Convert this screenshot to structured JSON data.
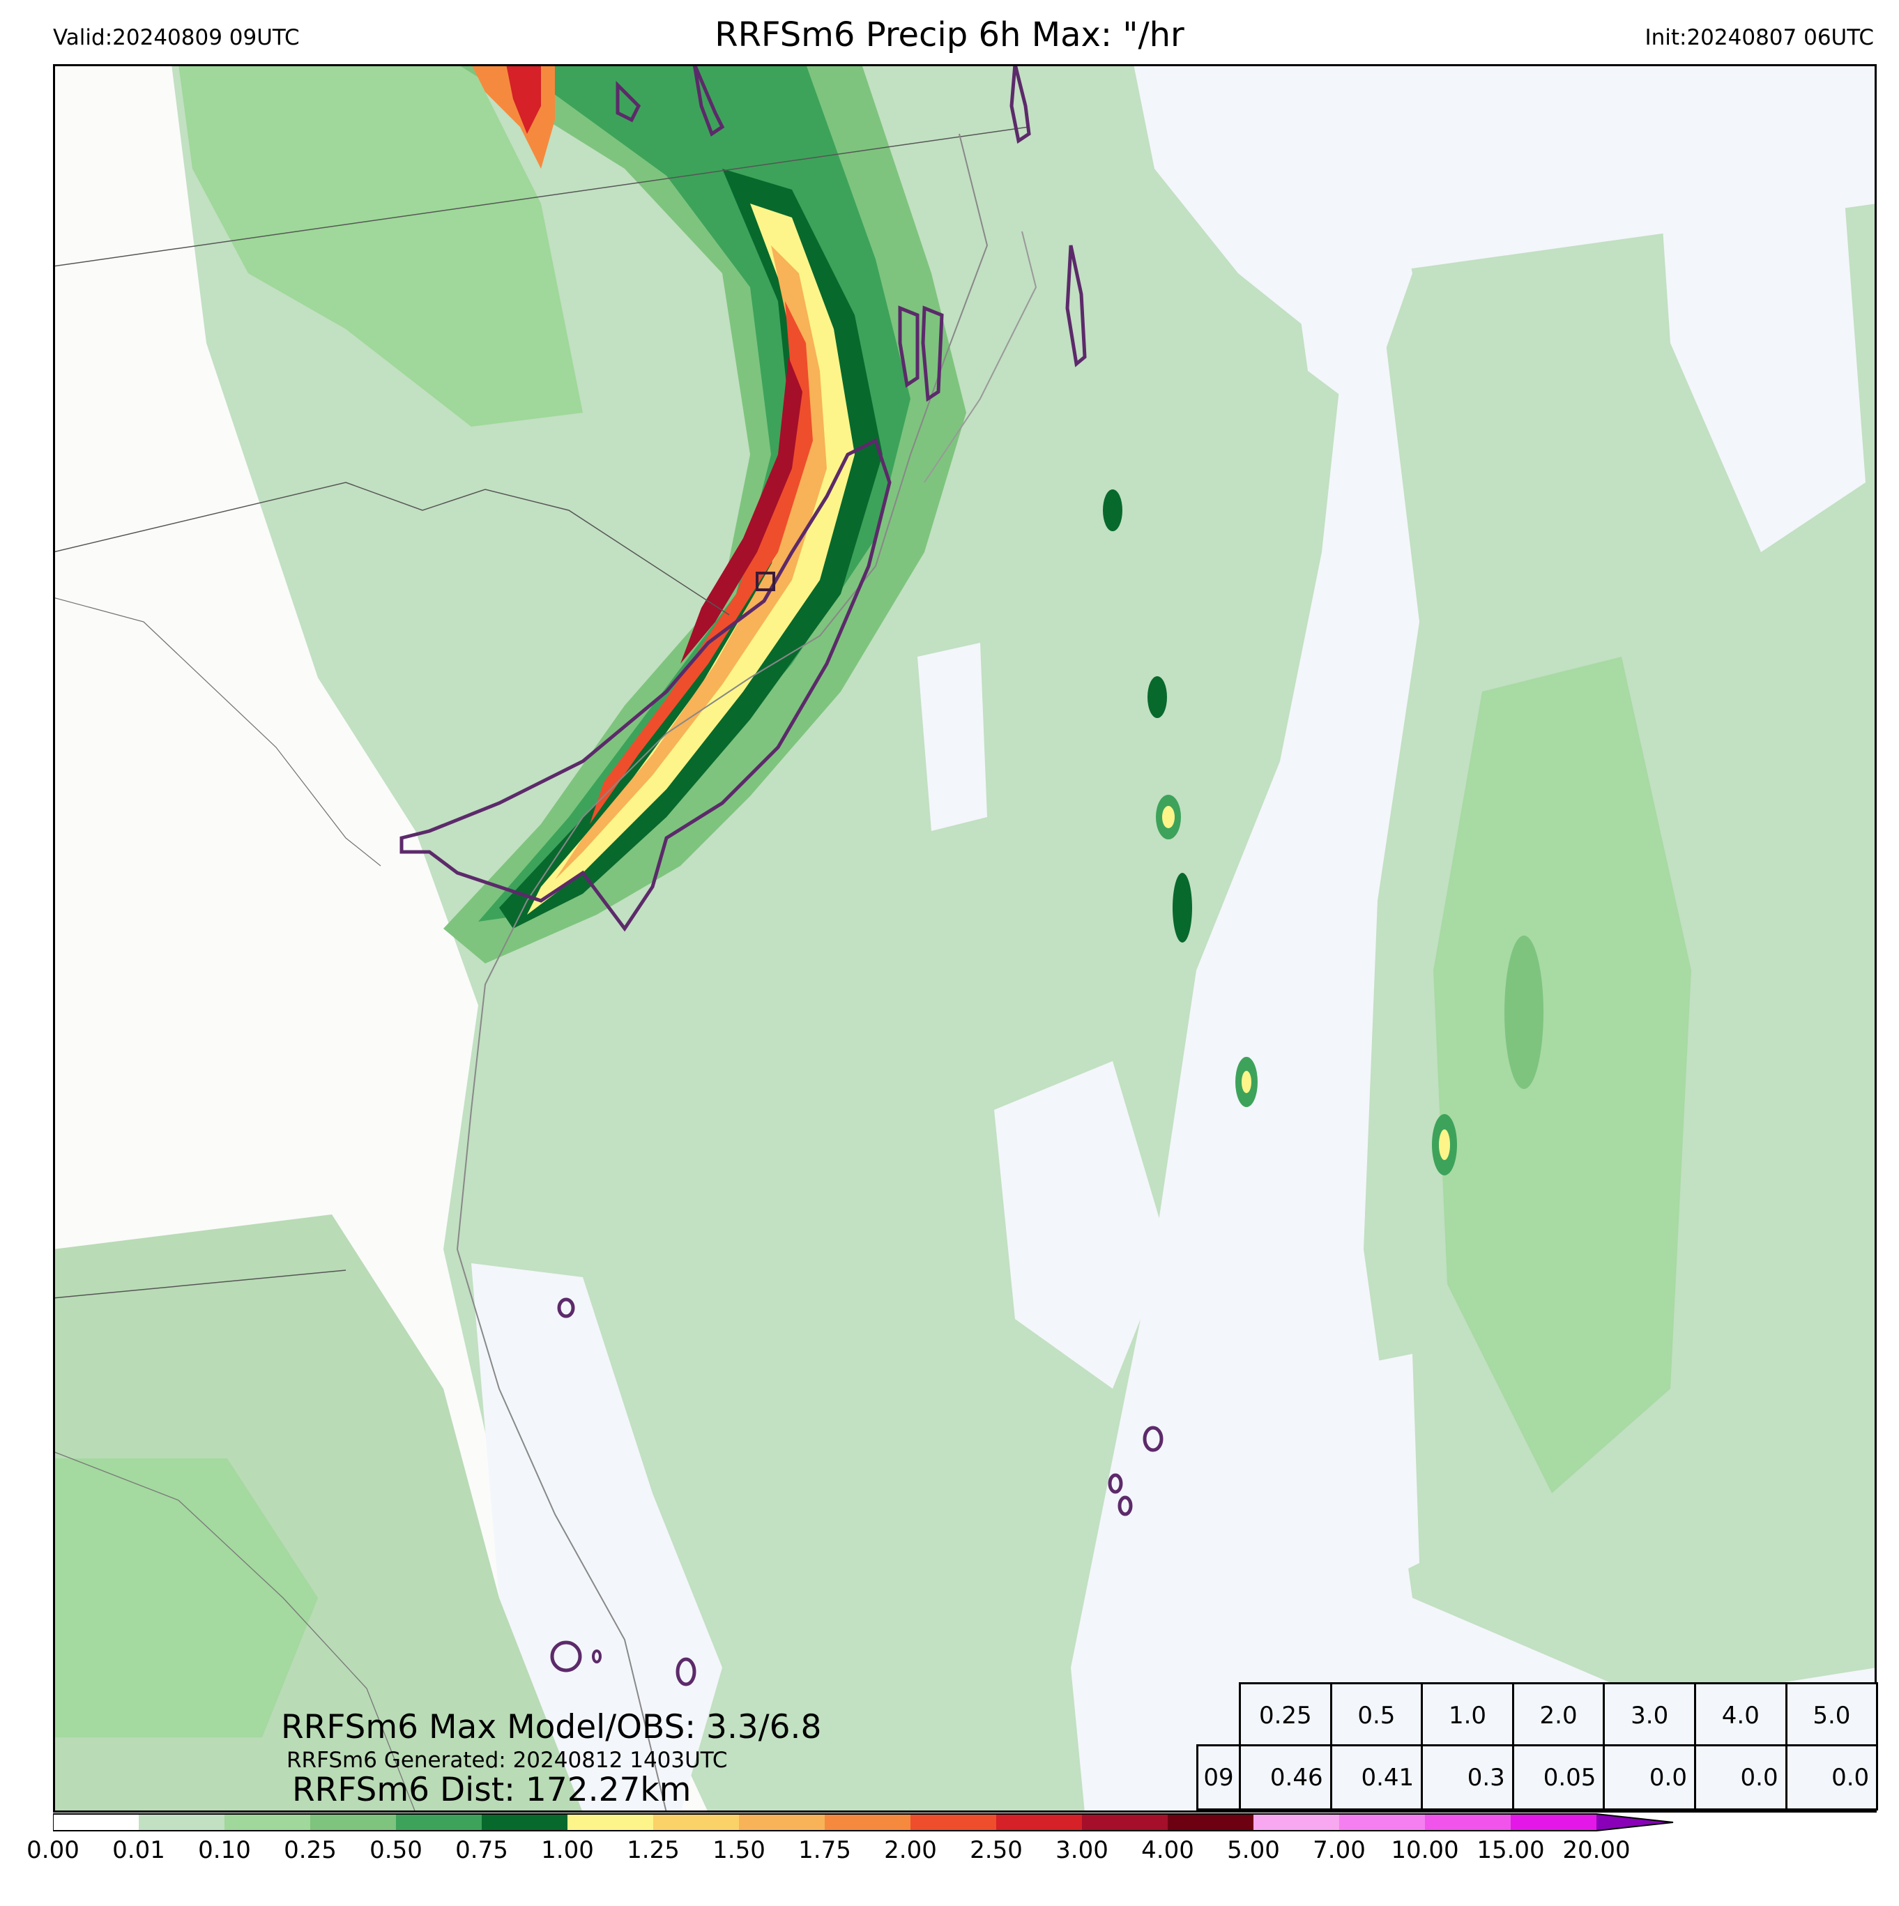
{
  "header": {
    "valid": "Valid:20240809 09UTC",
    "title": "RRFSm6 Precip 6h Max: \"/hr",
    "init": "Init:20240807 06UTC"
  },
  "annotations": {
    "max_model_obs": "RRFSm6 Max Model/OBS: 3.3/6.8",
    "generated": "RRFSm6 Generated: 20240812 1403UTC",
    "distance": "RRFSm6 Dist: 172.27km"
  },
  "stats_table": {
    "thresholds": [
      "0.25",
      "0.5",
      "1.0",
      "2.0",
      "3.0",
      "4.0",
      "5.0"
    ],
    "row_label": "09",
    "values": [
      "0.46",
      "0.41",
      "0.3",
      "0.05",
      "0.0",
      "0.0",
      "0.0"
    ]
  },
  "colorbar": {
    "ticks": [
      "0.00",
      "0.01",
      "0.10",
      "0.25",
      "0.50",
      "0.75",
      "1.00",
      "1.25",
      "1.50",
      "1.75",
      "2.00",
      "2.50",
      "3.00",
      "4.00",
      "5.00",
      "7.00",
      "10.00",
      "15.00",
      "20.00"
    ],
    "colors": [
      "#ffffff",
      "#c2e0c2",
      "#9fd89a",
      "#7ec47e",
      "#3da35a",
      "#08692d",
      "#fdf58a",
      "#fbd268",
      "#f8b257",
      "#f58a3e",
      "#ee4e2c",
      "#d52127",
      "#a50f2a",
      "#6d0011",
      "#f7a8f0",
      "#f57ff0",
      "#f054eb",
      "#e318e8",
      "#9b10cc"
    ],
    "extend_color": "#8a00b8"
  },
  "map_colors": {
    "land": "#fbfbfa",
    "ocean_dry": "#f3f6fa",
    "contour": "#5c2a6a",
    "border": "#555555"
  }
}
